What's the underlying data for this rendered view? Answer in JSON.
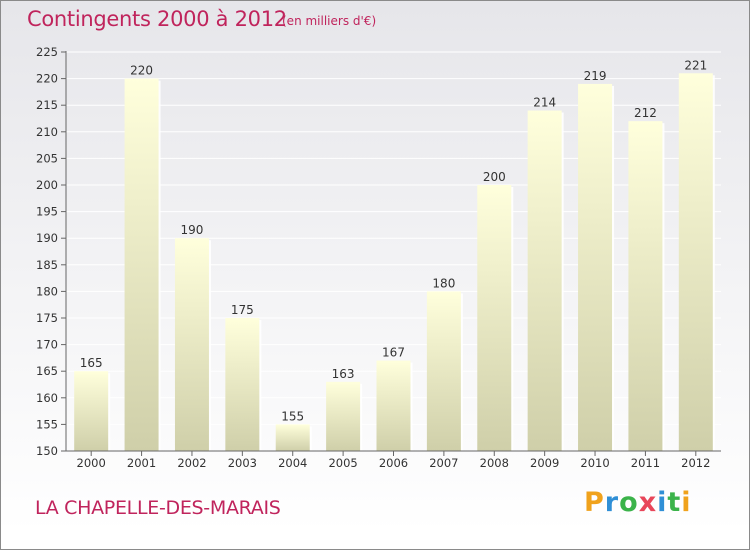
{
  "header": {
    "title": "Contingents 2000 à 2012",
    "unit": "(en milliers d'€)"
  },
  "footer": {
    "commune": "LA CHAPELLE-DES-MARAIS",
    "brand_letters": [
      "P",
      "r",
      "o",
      "x",
      "i",
      "t",
      "i"
    ]
  },
  "colors": {
    "title": "#c0245c",
    "bar_top": "#ffffdc",
    "bar_bottom": "#cfcfa9"
  },
  "chart_data": {
    "type": "bar",
    "categories": [
      "2000",
      "2001",
      "2002",
      "2003",
      "2004",
      "2005",
      "2006",
      "2007",
      "2008",
      "2009",
      "2010",
      "2011",
      "2012"
    ],
    "values": [
      165,
      220,
      190,
      175,
      155,
      163,
      167,
      180,
      200,
      214,
      219,
      212,
      221
    ],
    "ylim": [
      150,
      225
    ],
    "yticks": [
      150,
      155,
      160,
      165,
      170,
      175,
      180,
      185,
      190,
      195,
      200,
      205,
      210,
      215,
      220,
      225
    ],
    "grid": true,
    "data_labels": true
  }
}
